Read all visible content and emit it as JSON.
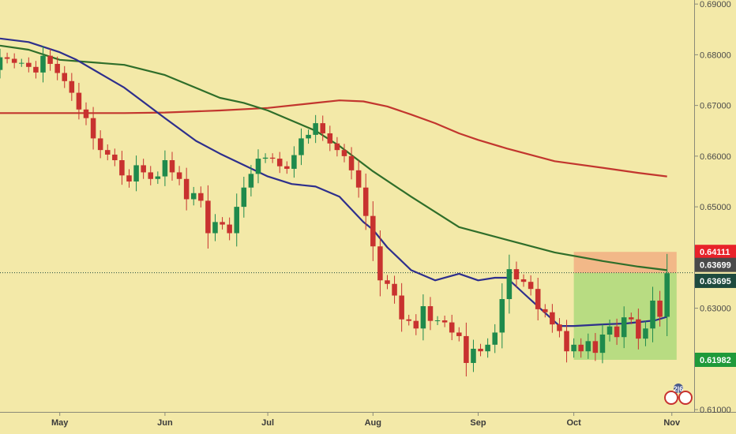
{
  "chart_data": {
    "type": "candlestick",
    "y_ticks": [
      0.61,
      0.62,
      0.63,
      0.64,
      0.65,
      0.66,
      0.67,
      0.68,
      0.69
    ],
    "y_tick_labels": [
      "0.61000",
      "0.62000",
      "0.63000",
      "0.64000",
      "0.65000",
      "0.66000",
      "0.67000",
      "0.68000",
      "0.69000"
    ],
    "ylim": [
      0.6097,
      0.6908
    ],
    "x_months": [
      "May",
      "Jun",
      "Jul",
      "Aug",
      "Sep",
      "Oct",
      "Nov"
    ],
    "x_month_positions": [
      13,
      57,
      100,
      144,
      188,
      228,
      269
    ],
    "xlim": [
      -12,
      278
    ],
    "grid": false,
    "colors": {
      "background": "#f3e9a8",
      "up_candle": "#1f8a4c",
      "down_candle": "#c8322f",
      "ma_fast": "#2e2f8c",
      "ma_mid": "#2f6e2a",
      "ma_slow": "#c2362e",
      "target_zone": "#b8dc82",
      "stop_zone": "#f2b888",
      "current_price_line": "#1e4a3e"
    },
    "ma_fast": {
      "x": [
        -12,
        0,
        13,
        20,
        40,
        57,
        70,
        80,
        100,
        110,
        120,
        130,
        140,
        144,
        150,
        160,
        170,
        180,
        188,
        195,
        200,
        208,
        215,
        222,
        228,
        240,
        250,
        262,
        267
      ],
      "y": [
        0.6832,
        0.6825,
        0.6805,
        0.679,
        0.6735,
        0.6675,
        0.663,
        0.6605,
        0.656,
        0.6545,
        0.654,
        0.652,
        0.647,
        0.6455,
        0.642,
        0.6375,
        0.6355,
        0.6368,
        0.6355,
        0.636,
        0.636,
        0.6325,
        0.6295,
        0.6265,
        0.6265,
        0.6268,
        0.627,
        0.6276,
        0.6283
      ]
    },
    "ma_mid": {
      "x": [
        -12,
        0,
        13,
        40,
        57,
        80,
        90,
        100,
        110,
        120,
        130,
        144,
        160,
        180,
        200,
        220,
        240,
        255,
        267
      ],
      "y": [
        0.6818,
        0.681,
        0.679,
        0.678,
        0.676,
        0.6715,
        0.6705,
        0.669,
        0.667,
        0.665,
        0.662,
        0.657,
        0.652,
        0.646,
        0.6435,
        0.641,
        0.6393,
        0.6382,
        0.6375
      ]
    },
    "ma_slow": {
      "x": [
        -12,
        0,
        13,
        40,
        57,
        80,
        100,
        120,
        130,
        140,
        150,
        160,
        170,
        180,
        188,
        200,
        220,
        240,
        255,
        267
      ],
      "y": [
        0.6685,
        0.6685,
        0.6685,
        0.6685,
        0.6686,
        0.669,
        0.6695,
        0.6705,
        0.671,
        0.6708,
        0.6698,
        0.6682,
        0.6665,
        0.6645,
        0.6632,
        0.6615,
        0.659,
        0.6577,
        0.6567,
        0.656
      ]
    },
    "candles": {
      "x": [
        -12,
        -9,
        -6,
        -3,
        0,
        3,
        6,
        9,
        12,
        15,
        18,
        21,
        24,
        27,
        30,
        33,
        36,
        39,
        42,
        45,
        48,
        51,
        54,
        57,
        60,
        63,
        66,
        69,
        72,
        75,
        78,
        81,
        84,
        87,
        90,
        93,
        96,
        99,
        102,
        105,
        108,
        111,
        114,
        117,
        120,
        123,
        126,
        129,
        132,
        135,
        138,
        141,
        144,
        147,
        150,
        153,
        156,
        159,
        162,
        165,
        168,
        171,
        174,
        177,
        180,
        183,
        186,
        189,
        192,
        195,
        198,
        201,
        204,
        207,
        210,
        213,
        216,
        219,
        222,
        225,
        228,
        231,
        234,
        237,
        240,
        243,
        246,
        249,
        252,
        255,
        258,
        261,
        264,
        267
      ],
      "open": [
        0.677,
        0.6795,
        0.6792,
        0.6784,
        0.6784,
        0.6776,
        0.6765,
        0.6798,
        0.6782,
        0.6764,
        0.6748,
        0.6725,
        0.6692,
        0.6675,
        0.6635,
        0.6612,
        0.6603,
        0.6592,
        0.6562,
        0.655,
        0.6582,
        0.6568,
        0.6555,
        0.656,
        0.6592,
        0.6568,
        0.6555,
        0.6515,
        0.6527,
        0.6512,
        0.6448,
        0.647,
        0.6465,
        0.6448,
        0.65,
        0.6538,
        0.6565,
        0.6595,
        0.6597,
        0.6595,
        0.658,
        0.6575,
        0.6602,
        0.6635,
        0.6642,
        0.6665,
        0.6645,
        0.6625,
        0.6612,
        0.66,
        0.6572,
        0.6538,
        0.6482,
        0.6422,
        0.6355,
        0.6348,
        0.6325,
        0.6278,
        0.6275,
        0.626,
        0.6304,
        0.6275,
        0.6276,
        0.6272,
        0.6252,
        0.6245,
        0.6192,
        0.622,
        0.6215,
        0.6228,
        0.6252,
        0.6318,
        0.6377,
        0.6357,
        0.6352,
        0.6338,
        0.6298,
        0.6292,
        0.6268,
        0.6255,
        0.6215,
        0.6228,
        0.6215,
        0.6235,
        0.6212,
        0.6248,
        0.6264,
        0.6243,
        0.6282,
        0.6278,
        0.624,
        0.626,
        0.6315,
        0.6283
      ],
      "close": [
        0.6795,
        0.6792,
        0.6784,
        0.6784,
        0.6776,
        0.6765,
        0.6798,
        0.6782,
        0.6764,
        0.6748,
        0.6725,
        0.6692,
        0.6675,
        0.6635,
        0.6612,
        0.6603,
        0.6592,
        0.6562,
        0.655,
        0.6582,
        0.6568,
        0.6555,
        0.656,
        0.6592,
        0.6568,
        0.6555,
        0.6515,
        0.6527,
        0.6512,
        0.6448,
        0.647,
        0.6465,
        0.6448,
        0.65,
        0.6538,
        0.6565,
        0.6595,
        0.6597,
        0.6595,
        0.658,
        0.6575,
        0.6602,
        0.6635,
        0.6642,
        0.6665,
        0.6645,
        0.6625,
        0.6612,
        0.66,
        0.6572,
        0.6538,
        0.6482,
        0.6422,
        0.6355,
        0.6348,
        0.6325,
        0.6278,
        0.6275,
        0.626,
        0.6304,
        0.6275,
        0.6276,
        0.6272,
        0.6252,
        0.6245,
        0.6192,
        0.622,
        0.6215,
        0.6228,
        0.6252,
        0.6318,
        0.6377,
        0.6357,
        0.6352,
        0.6338,
        0.6298,
        0.6292,
        0.6268,
        0.6255,
        0.6215,
        0.6228,
        0.6215,
        0.6235,
        0.6212,
        0.6248,
        0.6264,
        0.6243,
        0.6282,
        0.6278,
        0.624,
        0.626,
        0.6315,
        0.6283,
        0.6369
      ]
    },
    "price_badges": [
      {
        "label": "0.64111",
        "value": 0.64111,
        "color": "#e8222a"
      },
      {
        "label": "0.63699",
        "value": 0.63699,
        "color": "#4a4a4a"
      },
      {
        "label": "0.63695",
        "value": 0.63695,
        "color": "#1e4a3e"
      },
      {
        "label": "0.61982",
        "value": 0.61982,
        "color": "#1f9a3a"
      }
    ],
    "current_price": 0.63699,
    "position": {
      "x_start": 228,
      "x_end": 271,
      "entry": 0.63695,
      "stop": 0.64111,
      "target": 0.61982
    },
    "logo": {
      "icon": "broker-logo-icon",
      "text": "2|6"
    }
  }
}
